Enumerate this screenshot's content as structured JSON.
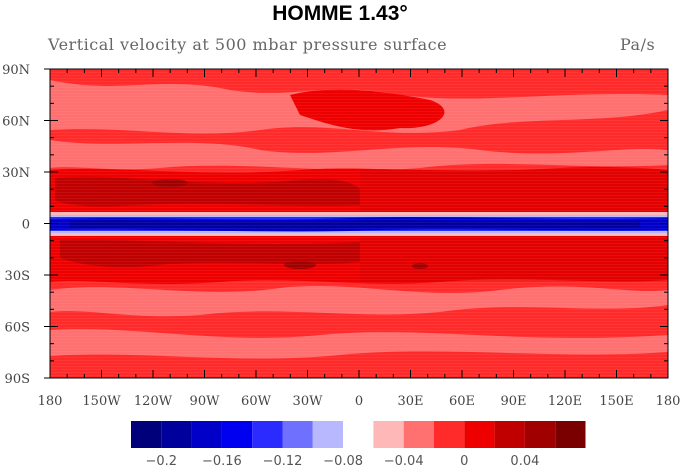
{
  "title": "HOMME 1.43°",
  "subtitle_left": "Vertical velocity at 500 mbar pressure surface",
  "subtitle_right": "Pa/s",
  "chart_data": {
    "type": "heatmap",
    "title": "HOMME 1.43°",
    "variable": "Vertical velocity at 500 mbar pressure surface",
    "units": "Pa/s",
    "x_ticks": [
      "180",
      "150W",
      "120W",
      "90W",
      "60W",
      "30W",
      "0",
      "30E",
      "60E",
      "90E",
      "120E",
      "150E",
      "180"
    ],
    "y_ticks": [
      "90N",
      "60N",
      "30N",
      "0",
      "30S",
      "60S",
      "90S"
    ],
    "xlim": [
      -180,
      180
    ],
    "ylim": [
      -90,
      90
    ],
    "colorbar": {
      "levels": [
        -0.22,
        -0.2,
        -0.18,
        -0.16,
        -0.14,
        -0.12,
        -0.1,
        -0.08,
        -0.06,
        -0.04,
        -0.02,
        0,
        0.02,
        0.04,
        0.06,
        0.08
      ],
      "colors": [
        "#00007a",
        "#00009c",
        "#0000c8",
        "#0000f0",
        "#2b2bff",
        "#7070ff",
        "#b8b8ff",
        "#ffffff",
        "#ffb8b8",
        "#ff7070",
        "#ff2b2b",
        "#ee0000",
        "#c00000",
        "#a00000",
        "#7a0000"
      ],
      "labels": [
        {
          "level": -0.2,
          "text": "−0.2"
        },
        {
          "level": -0.16,
          "text": "−0.16"
        },
        {
          "level": -0.12,
          "text": "−0.12"
        },
        {
          "level": -0.08,
          "text": "−0.08"
        },
        {
          "level": -0.04,
          "text": "−0.04"
        },
        {
          "level": 0,
          "text": "0"
        },
        {
          "level": 0.04,
          "text": "0.04"
        }
      ]
    },
    "features": "Mostly weakly positive (red) everywhere; strong negative (blue) band along the equator; darker red bands near 15-30N and 15-30S"
  }
}
